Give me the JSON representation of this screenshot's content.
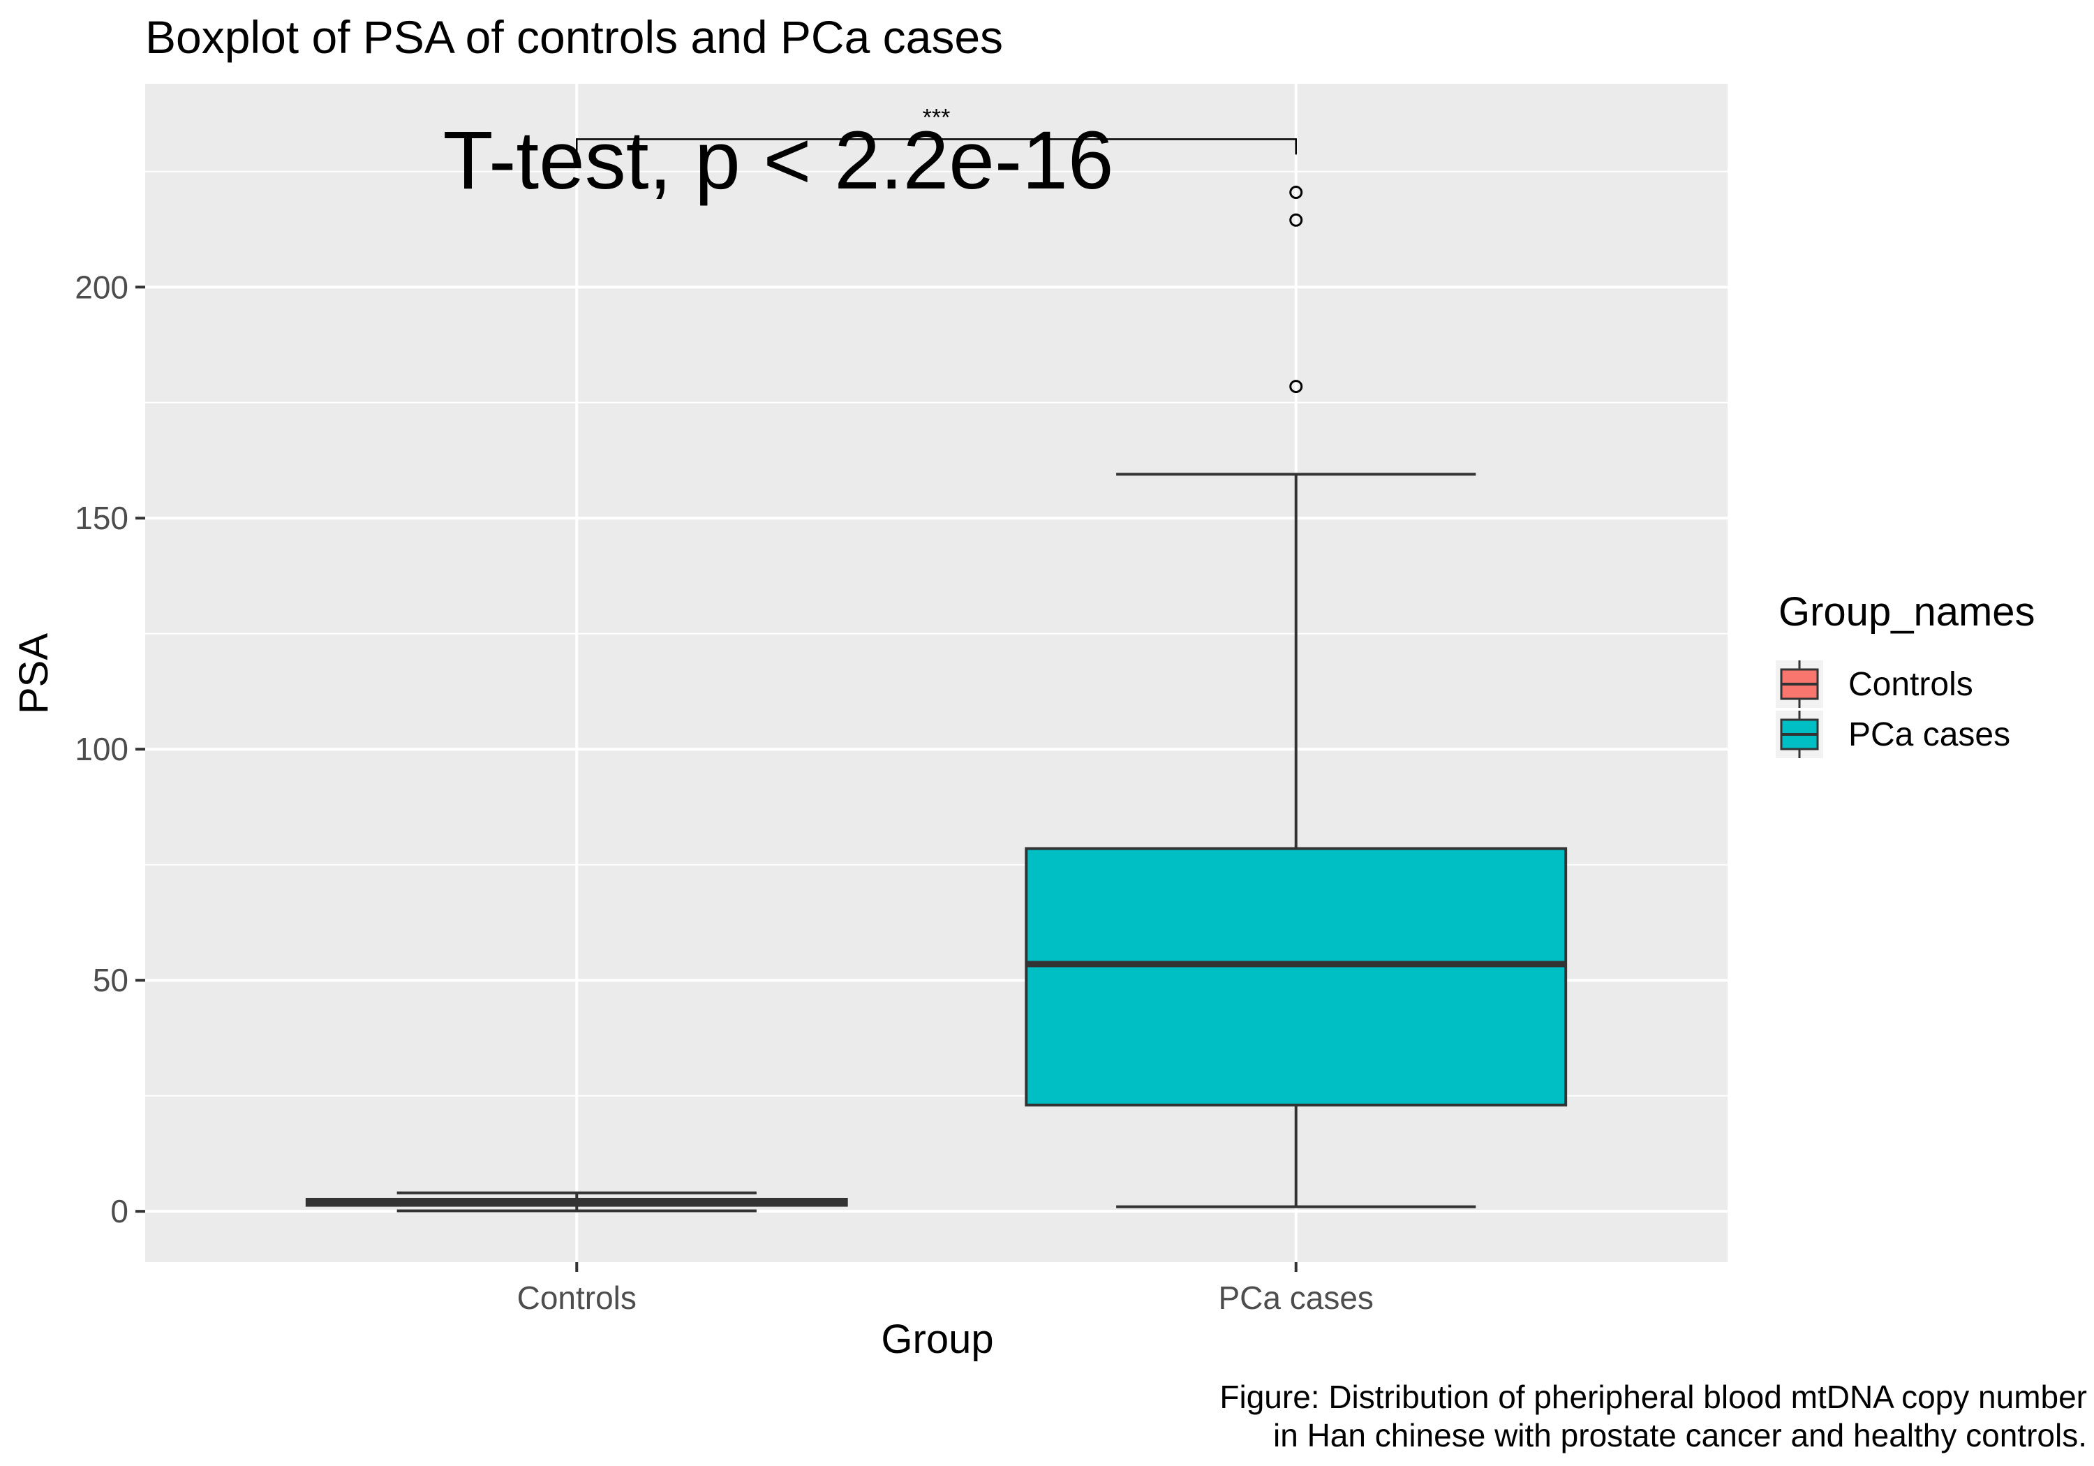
{
  "chart_data": {
    "type": "boxplot",
    "title": "Boxplot of PSA of controls and PCa cases",
    "xlabel": "Group",
    "ylabel": "PSA",
    "ylim": [
      -11,
      244
    ],
    "y_ticks": [
      0,
      50,
      100,
      150,
      200
    ],
    "categories": [
      "Controls",
      "PCa cases"
    ],
    "boxes": [
      {
        "name": "Controls",
        "whisker_low": 0.1,
        "q1": 1.3,
        "median": 2.0,
        "q3": 2.6,
        "whisker_high": 4.0,
        "outliers": [],
        "color": "#F8766D"
      },
      {
        "name": "PCa cases",
        "whisker_low": 1.0,
        "q1": 23,
        "median": 53.5,
        "q3": 78.5,
        "whisker_high": 159.5,
        "outliers": [
          178.5,
          214.5,
          220.5
        ],
        "color": "#00BFC4"
      }
    ],
    "annotation": {
      "test_label": "T-test, p < 2.2e-16",
      "significance": "***",
      "bracket_y": 232
    },
    "legend": {
      "title": "Group_names",
      "position": "right",
      "entries": [
        {
          "label": "Controls",
          "color": "#F8766D"
        },
        {
          "label": "PCa cases",
          "color": "#00BFC4"
        }
      ]
    },
    "caption": [
      "Figure: Distribution of pheripheral blood mtDNA copy number",
      "in Han chinese with prostate cancer and healthy controls."
    ],
    "colors": {
      "panel_bg": "#EBEBEB",
      "grid": "#FFFFFF",
      "outline": "#333333",
      "tick_label": "#4D4D4D"
    }
  }
}
